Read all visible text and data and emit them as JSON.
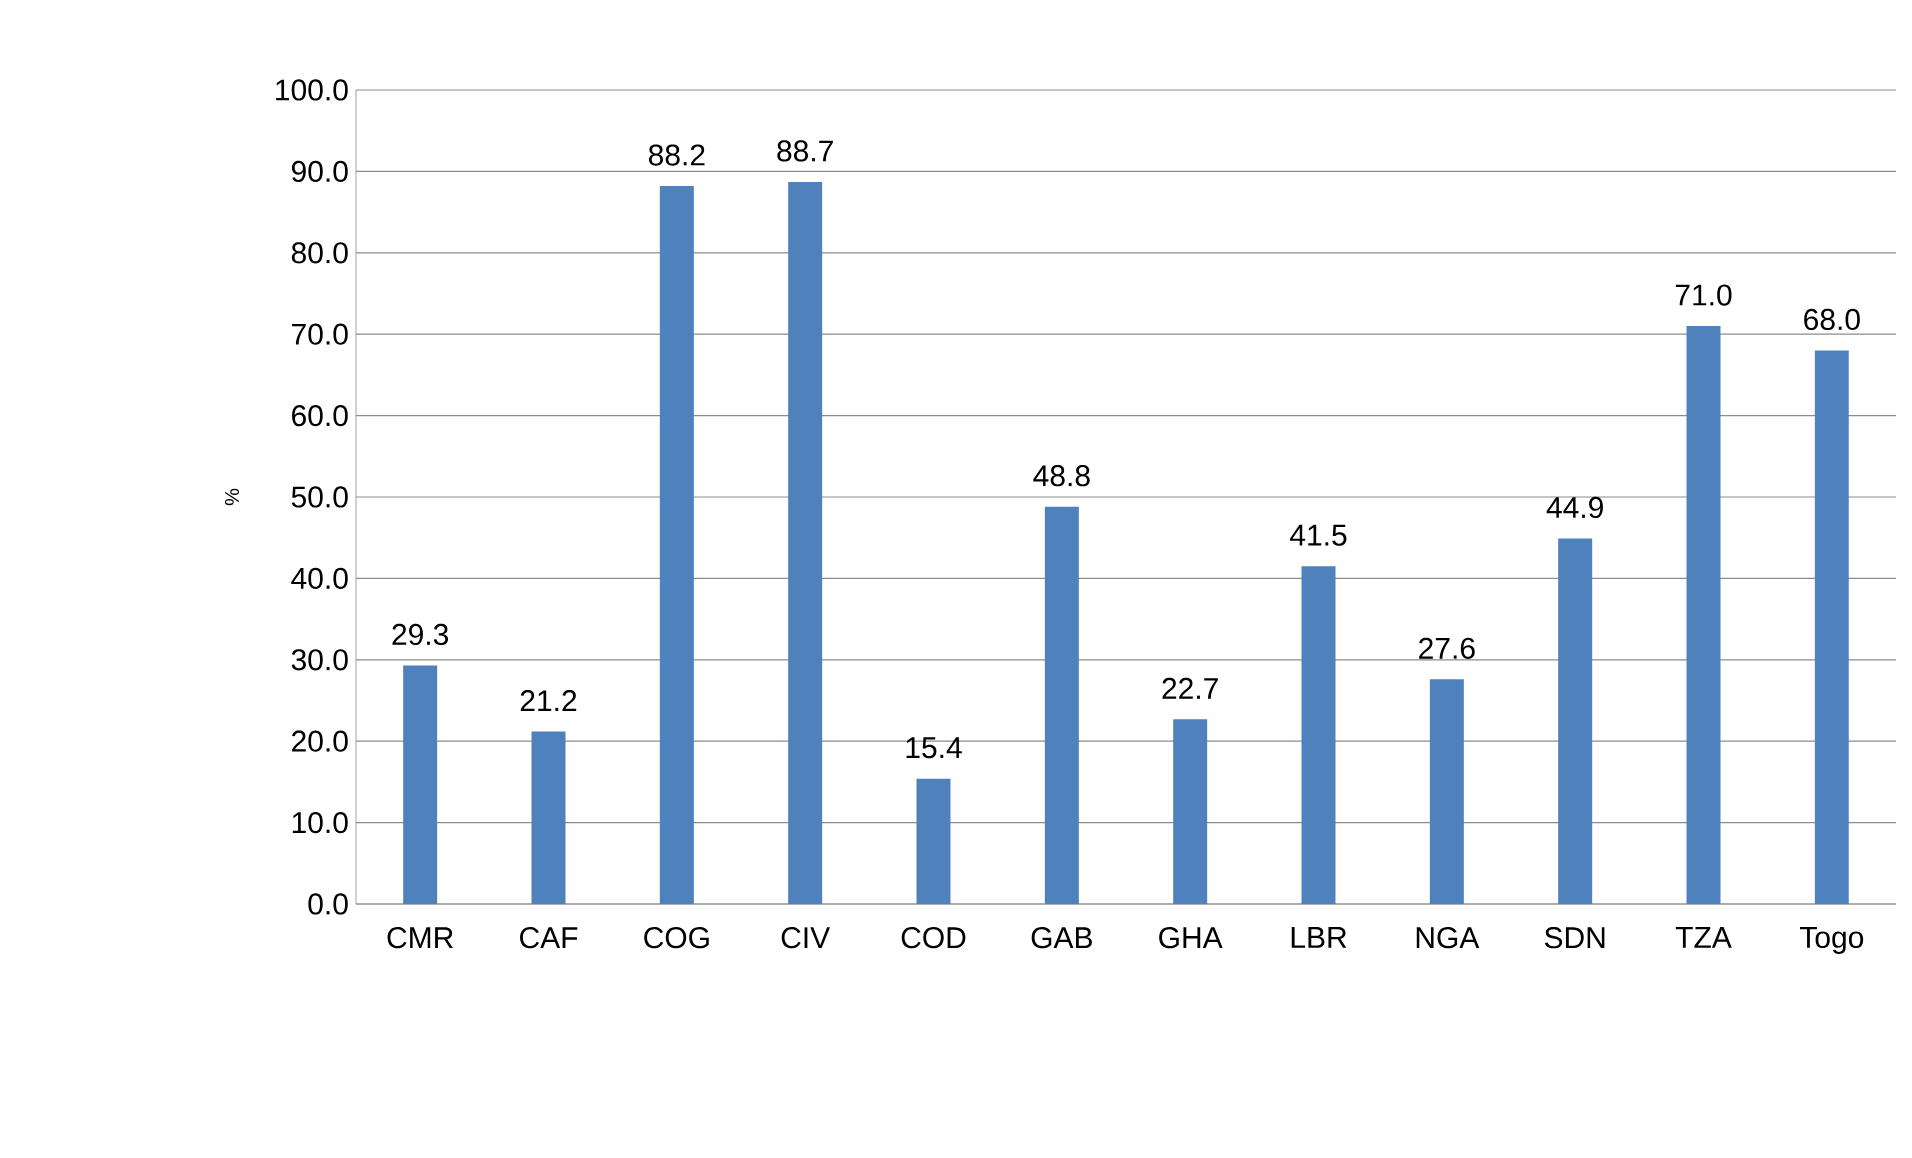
{
  "chart_data": {
    "type": "bar",
    "ylabel": "%",
    "categories": [
      "CMR",
      "CAF",
      "COG",
      "CIV",
      "COD",
      "GAB",
      "GHA",
      "LBR",
      "NGA",
      "SDN",
      "TZA",
      "Togo"
    ],
    "values": [
      29.3,
      21.2,
      88.2,
      88.7,
      15.4,
      48.8,
      22.7,
      41.5,
      27.6,
      44.9,
      71.0,
      68.0
    ],
    "value_labels": [
      "29.3",
      "21.2",
      "88.2",
      "88.7",
      "15.4",
      "48.8",
      "22.7",
      "41.5",
      "27.6",
      "44.9",
      "71.0",
      "68.0"
    ],
    "color": "#4f81bd",
    "ylim": [
      0,
      100
    ],
    "yticks": [
      {
        "value": 0,
        "label": "0.0"
      },
      {
        "value": 10,
        "label": "10.0"
      },
      {
        "value": 20,
        "label": "20.0"
      },
      {
        "value": 30,
        "label": "30.0"
      },
      {
        "value": 40,
        "label": "40.0"
      },
      {
        "value": 50,
        "label": "50.0"
      },
      {
        "value": 60,
        "label": "60.0"
      },
      {
        "value": 70,
        "label": "70.0"
      },
      {
        "value": 80,
        "label": "80.0"
      },
      {
        "value": 90,
        "label": "90.0"
      },
      {
        "value": 100,
        "label": "100.0"
      }
    ],
    "grid": "y"
  }
}
